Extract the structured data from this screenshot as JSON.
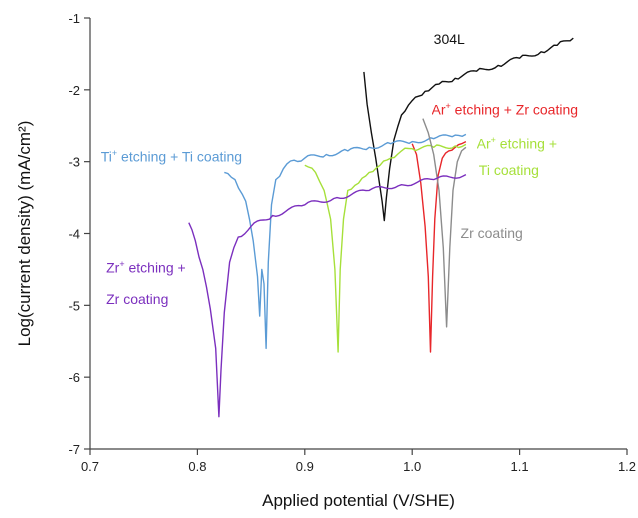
{
  "chart_data": {
    "type": "line",
    "xlabel": "Applied potential (V/SHE)",
    "ylabel": "Log(current density) (mA/cm²)",
    "xlim": [
      0.7,
      1.2
    ],
    "ylim": [
      -7,
      -1
    ],
    "xticks": [
      "0.7",
      "0.8",
      "0.9",
      "1.0",
      "1.1",
      "1.2"
    ],
    "yticks": [
      "-7",
      "-6",
      "-5",
      "-4",
      "-3",
      "-2",
      "-1"
    ],
    "grid": false,
    "legend": "none",
    "series": [
      {
        "name": "304L",
        "color": "#111111",
        "points": [
          [
            0.955,
            -1.75
          ],
          [
            0.958,
            -2.2
          ],
          [
            0.962,
            -2.6
          ],
          [
            0.966,
            -2.95
          ],
          [
            0.969,
            -3.25
          ],
          [
            0.972,
            -3.55
          ],
          [
            0.974,
            -3.82
          ],
          [
            0.976,
            -3.5
          ],
          [
            0.979,
            -3.1
          ],
          [
            0.983,
            -2.7
          ],
          [
            0.99,
            -2.35
          ],
          [
            1.0,
            -2.15
          ],
          [
            1.012,
            -2.02
          ],
          [
            1.025,
            -1.92
          ],
          [
            1.04,
            -1.84
          ],
          [
            1.06,
            -1.74
          ],
          [
            1.08,
            -1.66
          ],
          [
            1.1,
            -1.56
          ],
          [
            1.12,
            -1.47
          ],
          [
            1.135,
            -1.38
          ],
          [
            1.15,
            -1.28
          ]
        ]
      },
      {
        "name": "Ar⁺ etching + Zr coating",
        "color": "#e8262a",
        "points": [
          [
            1.0,
            -2.75
          ],
          [
            1.004,
            -2.9
          ],
          [
            1.008,
            -3.3
          ],
          [
            1.012,
            -3.9
          ],
          [
            1.015,
            -4.6
          ],
          [
            1.017,
            -5.65
          ],
          [
            1.019,
            -4.6
          ],
          [
            1.021,
            -3.8
          ],
          [
            1.024,
            -3.2
          ],
          [
            1.028,
            -2.95
          ],
          [
            1.034,
            -2.85
          ],
          [
            1.04,
            -2.8
          ],
          [
            1.046,
            -2.75
          ],
          [
            1.05,
            -2.72
          ]
        ]
      },
      {
        "name": "Ti⁺ etching + Ti coating",
        "color": "#5b9bd5",
        "points": [
          [
            0.825,
            -3.15
          ],
          [
            0.835,
            -3.25
          ],
          [
            0.845,
            -3.55
          ],
          [
            0.852,
            -4.1
          ],
          [
            0.856,
            -4.6
          ],
          [
            0.858,
            -5.15
          ],
          [
            0.86,
            -4.5
          ],
          [
            0.862,
            -4.7
          ],
          [
            0.864,
            -5.6
          ],
          [
            0.866,
            -4.4
          ],
          [
            0.869,
            -3.6
          ],
          [
            0.873,
            -3.25
          ],
          [
            0.88,
            -3.1
          ],
          [
            0.89,
            -2.98
          ],
          [
            0.9,
            -2.95
          ],
          [
            0.92,
            -2.9
          ],
          [
            0.94,
            -2.85
          ],
          [
            0.96,
            -2.8
          ],
          [
            0.98,
            -2.75
          ],
          [
            1.0,
            -2.72
          ],
          [
            1.02,
            -2.68
          ],
          [
            1.04,
            -2.63
          ],
          [
            1.05,
            -2.62
          ]
        ]
      },
      {
        "name": "Ar⁺ etching + Ti coating",
        "color": "#a6e03a",
        "points": [
          [
            0.9,
            -3.05
          ],
          [
            0.91,
            -3.15
          ],
          [
            0.918,
            -3.4
          ],
          [
            0.924,
            -3.8
          ],
          [
            0.928,
            -4.5
          ],
          [
            0.931,
            -5.65
          ],
          [
            0.933,
            -4.5
          ],
          [
            0.936,
            -3.8
          ],
          [
            0.94,
            -3.4
          ],
          [
            0.95,
            -3.3
          ],
          [
            0.96,
            -3.15
          ],
          [
            0.97,
            -3.05
          ],
          [
            0.98,
            -2.95
          ],
          [
            0.99,
            -2.85
          ],
          [
            1.0,
            -2.82
          ],
          [
            1.02,
            -2.8
          ],
          [
            1.04,
            -2.78
          ],
          [
            1.05,
            -2.76
          ]
        ]
      },
      {
        "name": "Zr coating",
        "color": "#8c8c8c",
        "points": [
          [
            1.01,
            -2.4
          ],
          [
            1.015,
            -2.6
          ],
          [
            1.02,
            -2.9
          ],
          [
            1.025,
            -3.4
          ],
          [
            1.029,
            -4.2
          ],
          [
            1.032,
            -5.3
          ],
          [
            1.035,
            -4.2
          ],
          [
            1.038,
            -3.4
          ],
          [
            1.042,
            -3.0
          ],
          [
            1.046,
            -2.85
          ],
          [
            1.05,
            -2.8
          ]
        ]
      },
      {
        "name": "Zr⁺ etching + Zr coating",
        "color": "#7b2fbe",
        "points": [
          [
            0.792,
            -3.85
          ],
          [
            0.798,
            -4.1
          ],
          [
            0.805,
            -4.5
          ],
          [
            0.812,
            -5.05
          ],
          [
            0.817,
            -5.6
          ],
          [
            0.82,
            -6.55
          ],
          [
            0.822,
            -5.9
          ],
          [
            0.825,
            -5.1
          ],
          [
            0.83,
            -4.4
          ],
          [
            0.838,
            -4.05
          ],
          [
            0.85,
            -3.9
          ],
          [
            0.87,
            -3.75
          ],
          [
            0.9,
            -3.6
          ],
          [
            0.93,
            -3.5
          ],
          [
            0.96,
            -3.4
          ],
          [
            0.99,
            -3.32
          ],
          [
            1.02,
            -3.25
          ],
          [
            1.05,
            -3.18
          ]
        ]
      }
    ],
    "annotations": [
      {
        "id": "304l",
        "html": "304L",
        "color": "#111111",
        "x": 1.02,
        "y": -1.38
      },
      {
        "id": "ar-zr",
        "html": "Ar<sup>+</sup> etching + Zr coating",
        "color": "#e8262a",
        "x": 1.018,
        "y": -2.35
      },
      {
        "id": "ti-ti",
        "html": "Ti<sup>+</sup> etching + Ti coating",
        "color": "#5b9bd5",
        "x": 0.71,
        "y": -3.0
      },
      {
        "id": "ar-ti-1",
        "html": "Ar<sup>+</sup> etching +",
        "color": "#a6e03a",
        "x": 1.06,
        "y": -2.82
      },
      {
        "id": "ar-ti-2",
        "html": "Ti coating",
        "color": "#a6e03a",
        "x": 1.062,
        "y": -3.2
      },
      {
        "id": "zr",
        "html": "Zr coating",
        "color": "#8c8c8c",
        "x": 1.045,
        "y": -4.08
      },
      {
        "id": "zr-zr-1",
        "html": "Zr<sup>+</sup> etching +",
        "color": "#7b2fbe",
        "x": 0.715,
        "y": -4.55
      },
      {
        "id": "zr-zr-2",
        "html": "Zr coating",
        "color": "#7b2fbe",
        "x": 0.715,
        "y": -5.0
      }
    ]
  }
}
